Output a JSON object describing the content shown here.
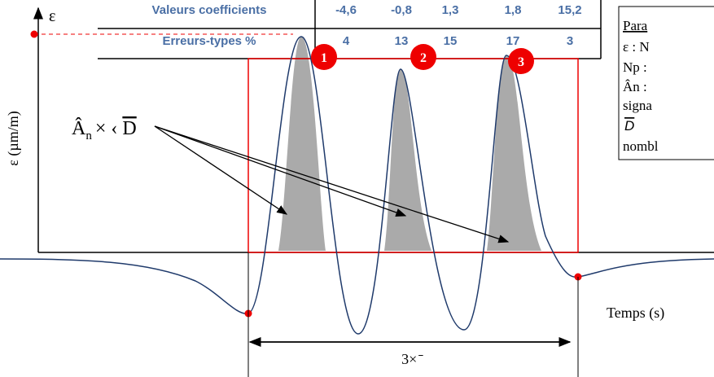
{
  "axis": {
    "symbol": "ε",
    "y_label": "ε (µm/m)",
    "x_label": "Temps (s)"
  },
  "table": {
    "rows": [
      {
        "label": "Valeurs coefficients",
        "cells": [
          "-4,6",
          "-0,8",
          "1,3",
          "1,8",
          "15,2"
        ]
      },
      {
        "label": "Erreurs-types %",
        "cells": [
          "4",
          "13",
          "15",
          "17",
          "3"
        ]
      }
    ]
  },
  "peaks": [
    "1",
    "2",
    "3"
  ],
  "area_label": {
    "a": "Â",
    "sub": "n",
    "op": "×   ‹",
    "d": "D"
  },
  "duration_label": "3× ̄",
  "legend_box": {
    "lines": [
      "Para",
      "ε : N",
      "Np :",
      "Ân :",
      "signa",
      "D",
      "nombl"
    ]
  }
}
